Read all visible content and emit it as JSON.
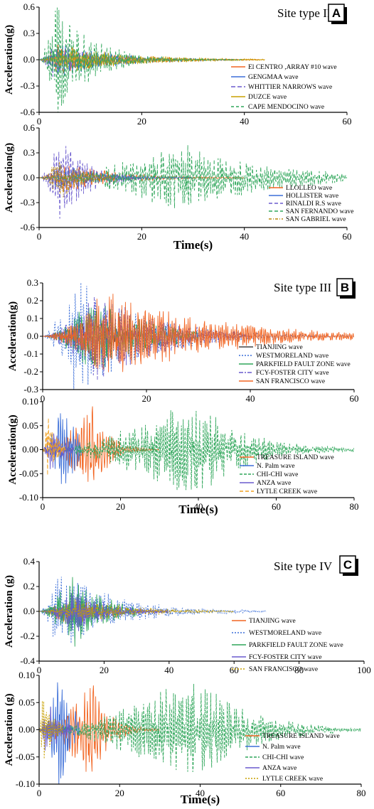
{
  "chart_data": [
    {
      "type": "line",
      "panel": "A",
      "site_type": "Site type II",
      "ylabel": "Acceleration(g)",
      "xlabel": "",
      "xlim": [
        0,
        60
      ],
      "ylim": [
        -0.6,
        0.6
      ],
      "x_ticks": [
        0,
        20,
        40,
        60
      ],
      "y_ticks": [
        -0.6,
        -0.3,
        0.0,
        0.3,
        0.6
      ],
      "y_tick_labels": [
        "-0.6",
        "-0.3",
        "0.0",
        "0.3",
        "0.6"
      ],
      "legend_position": "bottom-right",
      "series": [
        {
          "name": "El CENTRO ,ARRAY #10 wave",
          "color": "#f26522",
          "dash": "",
          "duration": 44,
          "peak": 0.16,
          "peak_t": 3.5,
          "decay": 0.09
        },
        {
          "name": "GENGMAA wave",
          "color": "#3c6fd8",
          "dash": "",
          "duration": 38,
          "peak": 0.18,
          "peak_t": 4,
          "decay": 0.1
        },
        {
          "name": "WHITTIER NARROWS wave",
          "color": "#6a5acd",
          "dash": "6,3",
          "duration": 25,
          "peak": 0.2,
          "peak_t": 3,
          "decay": 0.16
        },
        {
          "name": "DUZCE wave",
          "color": "#c8a000",
          "dash": "",
          "duration": 44,
          "peak": 0.14,
          "peak_t": 6,
          "decay": 0.08
        },
        {
          "name": "CAPE MENDOCINO wave",
          "color": "#2fa65a",
          "dash": "4,3",
          "duration": 40,
          "peak": 0.6,
          "peak_t": 3,
          "decay": 0.14
        }
      ]
    },
    {
      "type": "line",
      "panel": "A-lower",
      "ylabel": "Acceleration(g)",
      "xlabel": "Time(s)",
      "xlim": [
        0,
        60
      ],
      "ylim": [
        -0.6,
        0.6
      ],
      "x_ticks": [
        0,
        20,
        40,
        60
      ],
      "y_ticks": [
        -0.6,
        -0.3,
        0.0,
        0.3,
        0.6
      ],
      "y_tick_labels": [
        "-0.6",
        "-0.3",
        "0.0",
        "0.3",
        "0.6"
      ],
      "legend_position": "bottom-right",
      "series": [
        {
          "name": "LLOLLEO wave",
          "color": "#f26522",
          "dash": "",
          "duration": 40,
          "peak": 0.16,
          "peak_t": 5,
          "decay": 0.1
        },
        {
          "name": "HOLLISTER wave",
          "color": "#3c6fd8",
          "dash": "",
          "duration": 30,
          "peak": 0.15,
          "peak_t": 4,
          "decay": 0.12
        },
        {
          "name": "RINALDI R.S wave",
          "color": "#6a5acd",
          "dash": "5,3",
          "duration": 20,
          "peak": 0.44,
          "peak_t": 4,
          "decay": 0.18
        },
        {
          "name": "SAN FERNANDO wave",
          "color": "#2fa65a",
          "dash": "5,3",
          "duration": 60,
          "peak": 0.37,
          "peak_t": 28,
          "decay": 0.06
        },
        {
          "name": "SAN GABRIEL wave",
          "color": "#b8860b",
          "dash": "4,2,1,2",
          "duration": 15,
          "peak": 0.25,
          "peak_t": 4,
          "decay": 0.2
        }
      ]
    },
    {
      "type": "line",
      "panel": "B",
      "site_type": "Site type III",
      "ylabel": "Acceleration(g)",
      "xlabel": "",
      "xlim": [
        0,
        60
      ],
      "ylim": [
        -0.3,
        0.3
      ],
      "x_ticks": [
        0,
        20,
        40,
        60
      ],
      "y_ticks": [
        -0.3,
        -0.2,
        -0.1,
        0.0,
        0.1,
        0.2,
        0.3
      ],
      "y_tick_labels": [
        "-0.3",
        "-0.2",
        "-0.1",
        "0.0",
        "0.1",
        "0.2",
        "0.3"
      ],
      "legend_position": "bottom-right",
      "series": [
        {
          "name": "TIANJING wave",
          "color": "#444444",
          "dash": "",
          "duration": 19,
          "peak": 0.1,
          "peak_t": 8,
          "decay": 0.12
        },
        {
          "name": "WESTMORELAND wave",
          "color": "#3c6fd8",
          "dash": "2,2",
          "duration": 60,
          "peak": 0.3,
          "peak_t": 6,
          "decay": 0.08
        },
        {
          "name": "PARKFIELD FAULT ZONE wave",
          "color": "#2fa65a",
          "dash": "",
          "duration": 30,
          "peak": 0.2,
          "peak_t": 10,
          "decay": 0.1
        },
        {
          "name": "FCY-FOSTER CITY wave",
          "color": "#6a5acd",
          "dash": "6,2,2,2",
          "duration": 40,
          "peak": 0.25,
          "peak_t": 11,
          "decay": 0.09
        },
        {
          "name": "SAN FRANCISCO wave",
          "color": "#f26522",
          "dash": "",
          "duration": 60,
          "peak": 0.22,
          "peak_t": 12,
          "decay": 0.05
        }
      ]
    },
    {
      "type": "line",
      "panel": "B-lower",
      "ylabel": "Acceleration(g)",
      "xlabel": "Time(s)",
      "xlim": [
        0,
        80
      ],
      "ylim": [
        -0.1,
        0.1
      ],
      "x_ticks": [
        0,
        20,
        40,
        60,
        80
      ],
      "y_ticks": [
        -0.1,
        -0.05,
        0.0,
        0.05,
        0.1
      ],
      "y_tick_labels": [
        "-0.10",
        "-0.05",
        "0.00",
        "0.05",
        "0.10"
      ],
      "legend_position": "bottom-right",
      "series": [
        {
          "name": "TREASURE ISLAND wave",
          "color": "#f26522",
          "dash": "",
          "duration": 30,
          "peak": 0.088,
          "peak_t": 13,
          "decay": 0.25
        },
        {
          "name": "N. Palm wave",
          "color": "#3c6fd8",
          "dash": "",
          "duration": 10,
          "peak": 0.1,
          "peak_t": 5,
          "decay": 0.3
        },
        {
          "name": "CHI-CHI wave",
          "color": "#2fa65a",
          "dash": "4,2",
          "duration": 80,
          "peak": 0.09,
          "peak_t": 39,
          "decay": 0.08
        },
        {
          "name": "ANZA wave",
          "color": "#6a5acd",
          "dash": "",
          "duration": 8,
          "peak": 0.05,
          "peak_t": 2,
          "decay": 0.3
        },
        {
          "name": "LYTLE CREEK wave",
          "color": "#f0a020",
          "dash": "5,3",
          "duration": 6,
          "peak": 0.07,
          "peak_t": 1,
          "decay": 0.4
        }
      ]
    },
    {
      "type": "line",
      "panel": "C",
      "site_type": "Site type IV",
      "ylabel": "Acceleration (g)",
      "xlabel": "",
      "xlim": [
        0,
        100
      ],
      "ylim": [
        -0.4,
        0.4
      ],
      "x_ticks": [
        0,
        20,
        40,
        60,
        80,
        100
      ],
      "y_ticks": [
        -0.4,
        -0.2,
        0.0,
        0.2,
        0.4
      ],
      "y_tick_labels": [
        "-0.4",
        "-0.2",
        "0.0",
        "0.2",
        "0.4"
      ],
      "legend_position": "bottom-right",
      "series": [
        {
          "name": "TIANJING wave",
          "color": "#f26522",
          "dash": "",
          "duration": 19,
          "peak": 0.1,
          "peak_t": 8,
          "decay": 0.12
        },
        {
          "name": "WESTMORELAND wave",
          "color": "#3c6fd8",
          "dash": "2,2",
          "duration": 70,
          "peak": 0.3,
          "peak_t": 6,
          "decay": 0.06
        },
        {
          "name": "PARKFIELD FAULT ZONE wave",
          "color": "#2fa65a",
          "dash": "",
          "duration": 30,
          "peak": 0.27,
          "peak_t": 10,
          "decay": 0.1
        },
        {
          "name": "FCY-FOSTER CITY wave",
          "color": "#6a5acd",
          "dash": "",
          "duration": 40,
          "peak": 0.15,
          "peak_t": 11,
          "decay": 0.09
        },
        {
          "name": "SAN FRANCISCO wave",
          "color": "#c8a000",
          "dash": "2,2",
          "duration": 60,
          "peak": 0.1,
          "peak_t": 12,
          "decay": 0.06
        }
      ]
    },
    {
      "type": "line",
      "panel": "C-lower",
      "ylabel": "Acceleration (g)",
      "xlabel": "Time(s)",
      "xlim": [
        0,
        80
      ],
      "ylim": [
        -0.1,
        0.1
      ],
      "x_ticks": [
        0,
        20,
        40,
        60,
        80
      ],
      "y_ticks": [
        -0.1,
        -0.05,
        0.0,
        0.05,
        0.1
      ],
      "y_tick_labels": [
        "-0.10",
        "-0.05",
        "0.00",
        "0.05",
        "0.10"
      ],
      "legend_position": "bottom-right",
      "series": [
        {
          "name": "TREASURE ISLAND wave",
          "color": "#f26522",
          "dash": "",
          "duration": 30,
          "peak": 0.088,
          "peak_t": 13,
          "decay": 0.25
        },
        {
          "name": "N. Palm wave",
          "color": "#3c6fd8",
          "dash": "",
          "duration": 10,
          "peak": 0.1,
          "peak_t": 5,
          "decay": 0.3
        },
        {
          "name": "CHI-CHI wave",
          "color": "#2fa65a",
          "dash": "4,2",
          "duration": 80,
          "peak": 0.09,
          "peak_t": 39,
          "decay": 0.08
        },
        {
          "name": "ANZA wave",
          "color": "#6a5acd",
          "dash": "",
          "duration": 8,
          "peak": 0.05,
          "peak_t": 2,
          "decay": 0.3
        },
        {
          "name": "LYTLE CREEK wave",
          "color": "#c8a000",
          "dash": "2,2",
          "duration": 6,
          "peak": 0.07,
          "peak_t": 1,
          "decay": 0.4
        }
      ]
    }
  ]
}
